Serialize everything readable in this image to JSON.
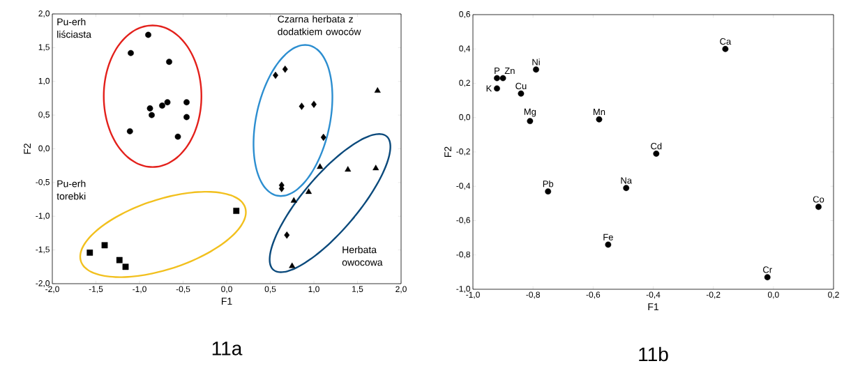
{
  "chart_data": [
    {
      "type": "scatter",
      "title": "11a",
      "xlabel": "F1",
      "ylabel": "F2",
      "xlim": [
        -2,
        2
      ],
      "ylim": [
        -2,
        2
      ],
      "xticks": [
        {
          "value": -2,
          "label": "-2,0"
        },
        {
          "value": -1.5,
          "label": "-1,5"
        },
        {
          "value": -1,
          "label": "-1,0"
        },
        {
          "value": -0.5,
          "label": "-0,5"
        },
        {
          "value": 0,
          "label": "0,0"
        },
        {
          "value": 0.5,
          "label": "0,5"
        },
        {
          "value": 1,
          "label": "1,0"
        },
        {
          "value": 1.5,
          "label": "1,5"
        },
        {
          "value": 2,
          "label": "2,0"
        }
      ],
      "yticks": [
        {
          "value": -2,
          "label": "-2,0"
        },
        {
          "value": -1.5,
          "label": "-1,5"
        },
        {
          "value": -1,
          "label": "-1,0"
        },
        {
          "value": -0.5,
          "label": "-0,5"
        },
        {
          "value": 0,
          "label": "0,0"
        },
        {
          "value": 0.5,
          "label": "0,5"
        },
        {
          "value": 1,
          "label": "1,0"
        },
        {
          "value": 1.5,
          "label": "1,5"
        },
        {
          "value": 2,
          "label": "2,0"
        }
      ],
      "series": [
        {
          "type": "scatter",
          "marker": "circle",
          "color": "#000000",
          "x": [
            -0.9,
            -1.1,
            -0.66,
            -0.88,
            -0.86,
            -0.74,
            -0.68,
            -0.46,
            -0.46,
            -1.11,
            -0.56
          ],
          "values": [
            1.69,
            1.42,
            1.29,
            0.6,
            0.5,
            0.64,
            0.69,
            0.69,
            0.47,
            0.26,
            0.18
          ]
        },
        {
          "type": "scatter",
          "marker": "square",
          "color": "#000000",
          "x": [
            -1.57,
            -1.4,
            -1.23,
            -1.16,
            0.11
          ],
          "values": [
            -1.54,
            -1.43,
            -1.65,
            -1.75,
            -0.92
          ]
        },
        {
          "type": "scatter",
          "marker": "diamond",
          "color": "#000000",
          "x": [
            0.56,
            0.67,
            0.86,
            1.0,
            1.11,
            0.63,
            0.63,
            0.69
          ],
          "values": [
            1.09,
            1.18,
            0.63,
            0.66,
            0.17,
            -0.54,
            -0.59,
            -1.28
          ]
        },
        {
          "type": "scatter",
          "marker": "triangle",
          "color": "#000000",
          "x": [
            1.73,
            1.07,
            1.39,
            1.71,
            0.94,
            0.77,
            0.75
          ],
          "values": [
            0.86,
            -0.27,
            -0.31,
            -0.29,
            -0.64,
            -0.77,
            -1.74
          ]
        }
      ],
      "annotations": [
        "Pu-erh liściasta",
        "Pu-erh torebki",
        "Czarna herbata z dodatkiem owoców",
        "Herbata owocowa"
      ]
    },
    {
      "type": "scatter",
      "title": "11b",
      "xlabel": "F1",
      "ylabel": "F2",
      "marker": "circle",
      "xlim": [
        -1,
        0.2
      ],
      "ylim": [
        -1,
        0.6
      ],
      "xticks": [
        {
          "value": -1,
          "label": "-1,0"
        },
        {
          "value": -0.8,
          "label": "-0,8"
        },
        {
          "value": -0.6,
          "label": "-0,6"
        },
        {
          "value": -0.4,
          "label": "-0,4"
        },
        {
          "value": -0.2,
          "label": "-0,2"
        },
        {
          "value": 0,
          "label": "0,0"
        },
        {
          "value": 0.2,
          "label": "0,2"
        }
      ],
      "yticks": [
        {
          "value": -1,
          "label": "-1,0"
        },
        {
          "value": -0.8,
          "label": "-0,8"
        },
        {
          "value": -0.6,
          "label": "-0,6"
        },
        {
          "value": -0.4,
          "label": "-0,4"
        },
        {
          "value": -0.2,
          "label": "-0,2"
        },
        {
          "value": 0,
          "label": "0,0"
        },
        {
          "value": 0.2,
          "label": "0,2"
        },
        {
          "value": 0.4,
          "label": "0,4"
        },
        {
          "value": 0.6,
          "label": "0,6"
        }
      ],
      "series": [
        {
          "color": "#000000",
          "x": [
            -0.92,
            -0.9,
            -0.92,
            -0.84,
            -0.79,
            -0.81,
            -0.58,
            -0.16,
            -0.39,
            -0.49,
            -0.75,
            -0.55,
            0.15,
            -0.02
          ],
          "values": [
            0.23,
            0.23,
            0.17,
            0.14,
            0.28,
            -0.02,
            -0.01,
            0.4,
            -0.21,
            -0.41,
            -0.43,
            -0.74,
            -0.52,
            -0.93
          ]
        }
      ],
      "annotations": [
        {
          "text": "P",
          "x": -0.92,
          "y": 0.23
        },
        {
          "text": "Zn",
          "x": -0.9,
          "y": 0.23
        },
        {
          "text": "K",
          "x": -0.92,
          "y": 0.17
        },
        {
          "text": "Cu",
          "x": -0.84,
          "y": 0.14
        },
        {
          "text": "Ni",
          "x": -0.79,
          "y": 0.28
        },
        {
          "text": "Mg",
          "x": -0.81,
          "y": -0.02
        },
        {
          "text": "Mn",
          "x": -0.58,
          "y": -0.01
        },
        {
          "text": "Ca",
          "x": -0.16,
          "y": 0.4
        },
        {
          "text": "Cd",
          "x": -0.39,
          "y": -0.21
        },
        {
          "text": "Na",
          "x": -0.49,
          "y": -0.41
        },
        {
          "text": "Pb",
          "x": -0.75,
          "y": -0.43
        },
        {
          "text": "Fe",
          "x": -0.55,
          "y": -0.74
        },
        {
          "text": "Co",
          "x": 0.15,
          "y": -0.52
        },
        {
          "text": "Cr",
          "x": -0.02,
          "y": -0.93
        }
      ]
    }
  ]
}
